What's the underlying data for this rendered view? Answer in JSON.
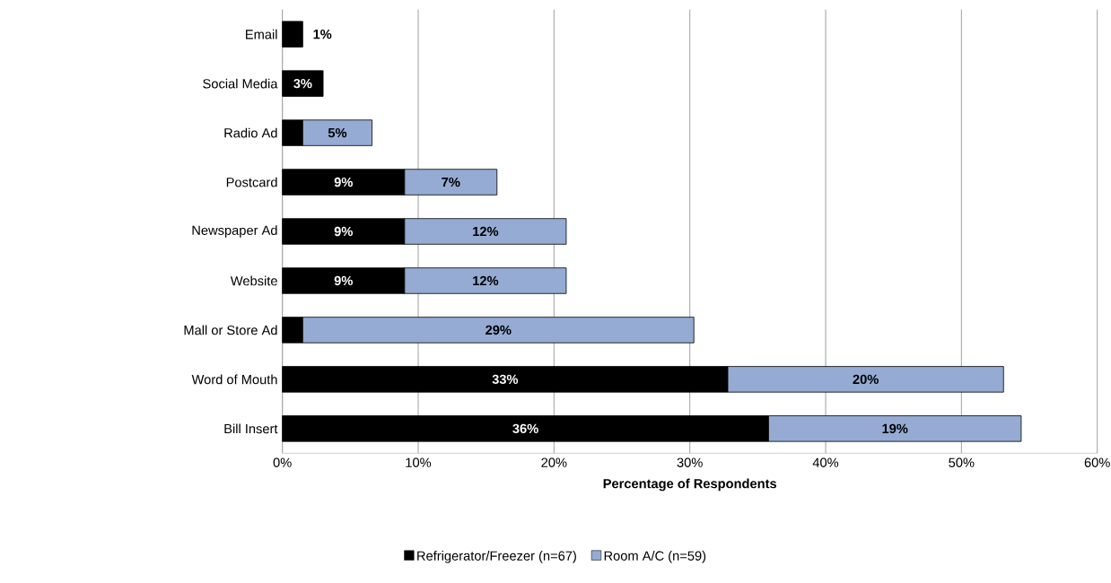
{
  "chart_data": {
    "type": "bar",
    "orientation": "horizontal",
    "stacked": true,
    "categories": [
      "Email",
      "Social Media",
      "Radio Ad",
      "Postcard",
      "Newspaper Ad",
      "Website",
      "Mall or Store Ad",
      "Word of Mouth",
      "Bill Insert"
    ],
    "series": [
      {
        "name": "Refrigerator/Freezer (n=67)",
        "color": "#000000",
        "values": [
          1.5,
          3.0,
          1.5,
          9.0,
          9.0,
          9.0,
          1.5,
          32.8,
          35.8
        ],
        "value_labels": [
          "1%",
          "3%",
          null,
          "9%",
          "9%",
          "9%",
          null,
          "33%",
          "36%"
        ]
      },
      {
        "name": "Room A/C (n=59)",
        "color": "#95abd3",
        "values": [
          null,
          null,
          5.1,
          6.8,
          11.9,
          11.9,
          28.8,
          20.3,
          18.6
        ],
        "value_labels": [
          null,
          null,
          "5%",
          "7%",
          "12%",
          "12%",
          "29%",
          "20%",
          "19%"
        ]
      }
    ],
    "xlabel": "Percentage of Respondents",
    "xlim": [
      0,
      60
    ],
    "xticks": [
      {
        "value": 0,
        "label": "0%"
      },
      {
        "value": 10,
        "label": "10%"
      },
      {
        "value": 20,
        "label": "20%"
      },
      {
        "value": 30,
        "label": "30%"
      },
      {
        "value": 40,
        "label": "40%"
      },
      {
        "value": 50,
        "label": "50%"
      },
      {
        "value": 60,
        "label": "60%"
      }
    ],
    "grid": "x",
    "legend": "bottom"
  }
}
